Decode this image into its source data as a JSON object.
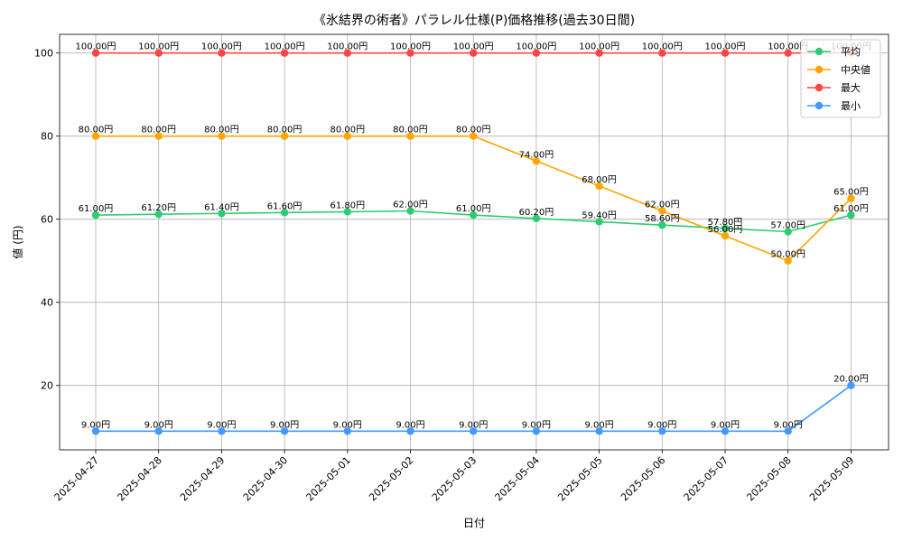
{
  "chart_data": {
    "type": "line",
    "title": "《氷結界の術者》パラレル仕様(P)価格推移(過去30日間)",
    "xlabel": "日付",
    "ylabel": "値 (円)",
    "categories": [
      "2025-04-27",
      "2025-04-28",
      "2025-04-29",
      "2025-04-30",
      "2025-05-01",
      "2025-05-02",
      "2025-05-03",
      "2025-05-04",
      "2025-05-05",
      "2025-05-06",
      "2025-05-07",
      "2025-05-08",
      "2025-05-09"
    ],
    "ylim": [
      4.5,
      104.5
    ],
    "yticks": [
      20,
      40,
      60,
      80,
      100
    ],
    "grid": true,
    "legend_position": "top-right",
    "value_suffix": "円",
    "series": [
      {
        "name": "平均",
        "color": "#2ecc71",
        "values": [
          61.0,
          61.2,
          61.4,
          61.6,
          61.8,
          62.0,
          61.0,
          60.2,
          59.4,
          58.6,
          57.8,
          57.0,
          61.0
        ]
      },
      {
        "name": "中央値",
        "color": "#ffa500",
        "values": [
          80,
          80,
          80,
          80,
          80,
          80,
          80,
          74,
          68,
          62,
          56,
          50,
          65
        ]
      },
      {
        "name": "最大",
        "color": "#ff4444",
        "values": [
          100,
          100,
          100,
          100,
          100,
          100,
          100,
          100,
          100,
          100,
          100,
          100,
          100
        ]
      },
      {
        "name": "最小",
        "color": "#4499ff",
        "values": [
          9,
          9,
          9,
          9,
          9,
          9,
          9,
          9,
          9,
          9,
          9,
          9,
          20
        ]
      }
    ]
  }
}
